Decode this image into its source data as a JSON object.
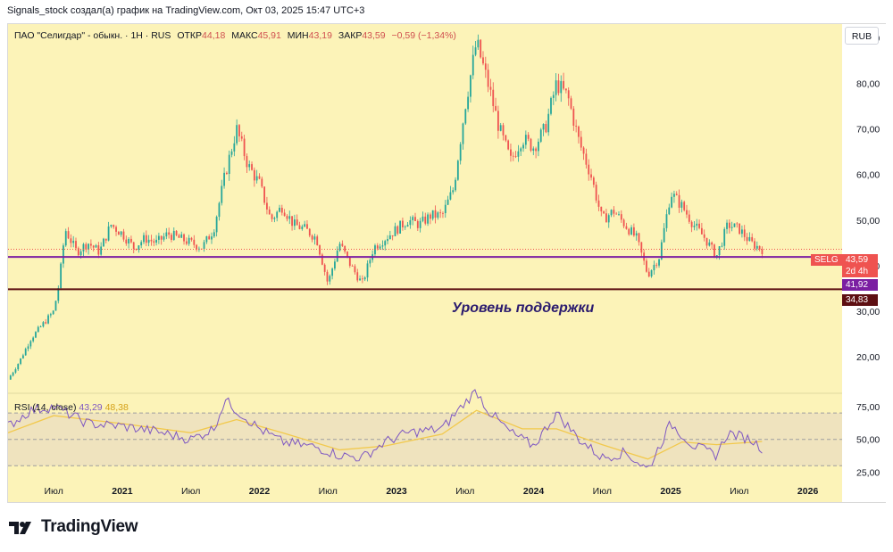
{
  "header": {
    "credit": "Signals_stock создал(а) график на TradingView.com, Окт 03, 2025 15:47 UTC+3"
  },
  "legend": {
    "title": "ПАО \"Селигдар\" - обыкн. · 1H · RUS",
    "open_label": "ОТКР",
    "open": "44,18",
    "high_label": "МАКС",
    "high": "45,91",
    "low_label": "МИН",
    "low": "43,19",
    "close_label": "ЗАКР",
    "close": "43,59",
    "change": "−0,59 (−1,34%)"
  },
  "currency_button": "RUB",
  "price_tags": {
    "ticker": "SELG",
    "last": "43,59",
    "countdown": "2d 4h",
    "level1": "41,92",
    "level2": "34,83"
  },
  "annotation": "Уровень поддержки",
  "rsi": {
    "label": "RSI (14, close)",
    "value": "43,29",
    "ma": "48,38"
  },
  "brand": {
    "name": "TradingView"
  },
  "colors": {
    "up": "#26a69a",
    "down": "#ef5350",
    "background": "#fcf3b8",
    "level1": "#7b1fa2",
    "level2": "#5d0f12",
    "rsi_line": "#7e57c2",
    "rsi_ma": "#f2c94c"
  },
  "chart_data": [
    {
      "type": "candlestick",
      "y_axis": {
        "range": [
          12,
          93
        ],
        "ticks": [
          "90,00",
          "80,00",
          "70,00",
          "60,00",
          "50,00",
          "40,00",
          "30,00",
          "20,00"
        ],
        "tick_values": [
          90,
          80,
          70,
          60,
          50,
          40,
          30,
          20
        ]
      },
      "x_axis": {
        "ticks": [
          {
            "label": "Июл",
            "date": "2020-07"
          },
          {
            "label": "2021",
            "date": "2021-01"
          },
          {
            "label": "Июл",
            "date": "2021-07"
          },
          {
            "label": "2022",
            "date": "2022-01"
          },
          {
            "label": "Июл",
            "date": "2022-07"
          },
          {
            "label": "2023",
            "date": "2023-01"
          },
          {
            "label": "Июл",
            "date": "2023-07"
          },
          {
            "label": "2024",
            "date": "2024-01"
          },
          {
            "label": "Июл",
            "date": "2024-07"
          },
          {
            "label": "2025",
            "date": "2025-01"
          },
          {
            "label": "Июл",
            "date": "2025-07"
          },
          {
            "label": "2026",
            "date": "2026-01"
          }
        ]
      },
      "horizontal_levels": [
        41.92,
        34.83
      ],
      "dotted_level": 43.59,
      "price_path": [
        [
          "2020-03",
          15
        ],
        [
          "2020-04",
          19
        ],
        [
          "2020-05",
          24
        ],
        [
          "2020-06",
          27
        ],
        [
          "2020-07",
          30
        ],
        [
          "2020-07-15",
          36
        ],
        [
          "2020-08",
          48
        ],
        [
          "2020-09",
          43
        ],
        [
          "2020-10",
          45
        ],
        [
          "2020-11",
          43
        ],
        [
          "2020-12",
          49
        ],
        [
          "2021-01",
          47
        ],
        [
          "2021-02",
          44
        ],
        [
          "2021-03",
          46
        ],
        [
          "2021-04",
          45
        ],
        [
          "2021-05",
          47
        ],
        [
          "2021-06",
          46
        ],
        [
          "2021-07",
          45
        ],
        [
          "2021-08",
          44
        ],
        [
          "2021-09",
          48
        ],
        [
          "2021-10",
          60
        ],
        [
          "2021-11",
          70
        ],
        [
          "2021-12",
          62
        ],
        [
          "2022-01",
          58
        ],
        [
          "2022-02",
          50
        ],
        [
          "2022-03",
          53
        ],
        [
          "2022-04",
          49
        ],
        [
          "2022-05",
          48
        ],
        [
          "2022-06",
          46
        ],
        [
          "2022-07",
          36
        ],
        [
          "2022-08",
          45
        ],
        [
          "2022-09",
          40
        ],
        [
          "2022-10",
          36
        ],
        [
          "2022-11",
          44
        ],
        [
          "2022-12",
          46
        ],
        [
          "2023-01",
          48
        ],
        [
          "2023-02",
          50
        ],
        [
          "2023-03",
          49
        ],
        [
          "2023-04",
          51
        ],
        [
          "2023-05",
          51
        ],
        [
          "2023-06",
          57
        ],
        [
          "2023-07",
          75
        ],
        [
          "2023-08",
          89
        ],
        [
          "2023-09",
          80
        ],
        [
          "2023-10",
          70
        ],
        [
          "2023-11",
          63
        ],
        [
          "2023-12",
          68
        ],
        [
          "2024-01",
          66
        ],
        [
          "2024-02",
          70
        ],
        [
          "2024-03",
          80
        ],
        [
          "2024-04",
          77
        ],
        [
          "2024-05",
          67
        ],
        [
          "2024-06",
          60
        ],
        [
          "2024-07",
          50
        ],
        [
          "2024-08",
          52
        ],
        [
          "2024-09",
          49
        ],
        [
          "2024-10",
          46
        ],
        [
          "2024-11",
          38
        ],
        [
          "2024-12",
          42
        ],
        [
          "2025-01",
          56
        ],
        [
          "2025-02",
          53
        ],
        [
          "2025-03",
          49
        ],
        [
          "2025-04",
          46
        ],
        [
          "2025-05",
          42
        ],
        [
          "2025-06",
          49
        ],
        [
          "2025-07",
          48
        ],
        [
          "2025-08",
          45
        ],
        [
          "2025-09",
          43.59
        ]
      ]
    },
    {
      "type": "line",
      "name": "RSI (14, close)",
      "y_axis": {
        "range": [
          20,
          85
        ],
        "ticks": [
          "75,00",
          "50,00",
          "25,00"
        ],
        "tick_values": [
          75,
          50,
          25
        ]
      },
      "bands": [
        70,
        50,
        30
      ],
      "rsi_path": [
        [
          "2020-03",
          60
        ],
        [
          "2020-05",
          72
        ],
        [
          "2020-07",
          75
        ],
        [
          "2020-10",
          62
        ],
        [
          "2021-01",
          60
        ],
        [
          "2021-04",
          56
        ],
        [
          "2021-07",
          50
        ],
        [
          "2021-09",
          58
        ],
        [
          "2021-10",
          80
        ],
        [
          "2021-11",
          72
        ],
        [
          "2022-01",
          58
        ],
        [
          "2022-03",
          48
        ],
        [
          "2022-06",
          44
        ],
        [
          "2022-08",
          38
        ],
        [
          "2022-10",
          36
        ],
        [
          "2022-12",
          48
        ],
        [
          "2023-02",
          55
        ],
        [
          "2023-05",
          58
        ],
        [
          "2023-07",
          78
        ],
        [
          "2023-08",
          87
        ],
        [
          "2023-09",
          72
        ],
        [
          "2023-11",
          55
        ],
        [
          "2024-01",
          45
        ],
        [
          "2024-03",
          70
        ],
        [
          "2024-05",
          50
        ],
        [
          "2024-07",
          36
        ],
        [
          "2024-09",
          40
        ],
        [
          "2024-11",
          27
        ],
        [
          "2025-01",
          62
        ],
        [
          "2025-03",
          45
        ],
        [
          "2025-05",
          38
        ],
        [
          "2025-06",
          55
        ],
        [
          "2025-08",
          50
        ],
        [
          "2025-09",
          43.29
        ]
      ],
      "ma_path": [
        [
          "2020-03",
          55
        ],
        [
          "2020-07",
          68
        ],
        [
          "2021-01",
          62
        ],
        [
          "2021-07",
          55
        ],
        [
          "2021-11",
          65
        ],
        [
          "2022-03",
          55
        ],
        [
          "2022-08",
          42
        ],
        [
          "2022-12",
          45
        ],
        [
          "2023-05",
          54
        ],
        [
          "2023-08",
          72
        ],
        [
          "2023-12",
          58
        ],
        [
          "2024-03",
          58
        ],
        [
          "2024-07",
          46
        ],
        [
          "2024-11",
          35
        ],
        [
          "2025-02",
          48
        ],
        [
          "2025-05",
          46
        ],
        [
          "2025-09",
          48.38
        ]
      ]
    }
  ]
}
